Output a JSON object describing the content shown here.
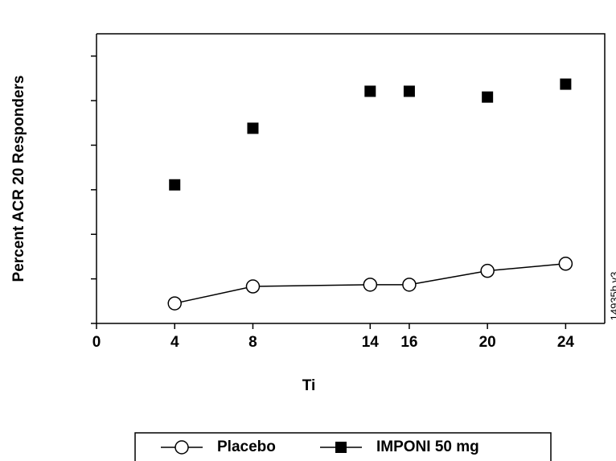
{
  "chart_data": {
    "type": "line",
    "x_label": "Ti",
    "y_label": "Percent ACR 20 Responders",
    "annotation": "14935b.v3",
    "x": [
      4,
      8,
      14,
      16,
      20,
      24
    ],
    "series": [
      {
        "name": "Placebo",
        "color": "#000000",
        "marker": "circle",
        "line": true,
        "values": [
          4.5,
          8.3,
          8.7,
          8.7,
          11.8,
          13.4
        ]
      },
      {
        "name": "IMPONI 50 mg",
        "color": "#000000",
        "marker": "square",
        "line": false,
        "values": [
          31.1,
          43.8,
          52.1,
          52.1,
          50.8,
          53.7
        ]
      }
    ],
    "xlim": [
      0,
      26
    ],
    "xticks": [
      0,
      4,
      8,
      14,
      16,
      20,
      24
    ],
    "ylim": [
      0,
      65
    ],
    "yticks": [
      0,
      10,
      20,
      30,
      40,
      50,
      60
    ],
    "grid": false,
    "legend": "bottom"
  }
}
